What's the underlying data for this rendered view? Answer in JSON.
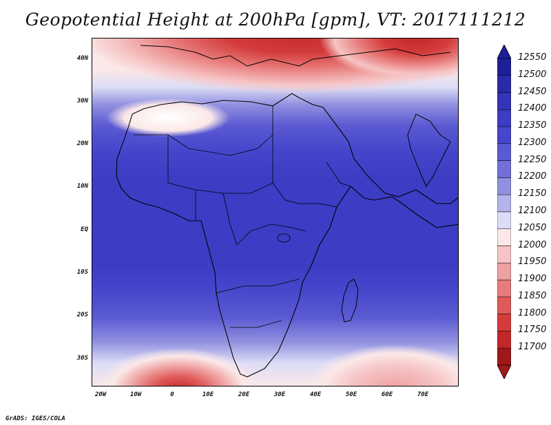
{
  "title": "Geopotential Height at 200hPa [gpm], VT: 2017111212",
  "credit": "GrADS: IGES/COLA",
  "latitude_labels": [
    "40N",
    "30N",
    "20N",
    "10N",
    "EQ",
    "10S",
    "20S",
    "30S"
  ],
  "longitude_labels": [
    "20W",
    "10W",
    "0",
    "10E",
    "20E",
    "30E",
    "40E",
    "50E",
    "60E",
    "70E"
  ],
  "colorbar": {
    "levels": [
      "12550",
      "12500",
      "12450",
      "12400",
      "12350",
      "12300",
      "12250",
      "12200",
      "12150",
      "12100",
      "12050",
      "12000",
      "11950",
      "11900",
      "11850",
      "11800",
      "11750",
      "11700"
    ],
    "colors": [
      "#1e1e96",
      "#2a2aa8",
      "#3434b8",
      "#3c3cc4",
      "#4646cc",
      "#5a5ad2",
      "#7070d8",
      "#9090e0",
      "#b4b4ec",
      "#dcdcf6",
      "#fbe8e8",
      "#f6c4c4",
      "#efa0a0",
      "#e87c7c",
      "#e05a5a",
      "#d43c3c",
      "#c02828",
      "#a01818"
    ]
  },
  "chart_data": {
    "type": "heatmap",
    "variable": "Geopotential Height",
    "level": "200hPa",
    "units": "gpm",
    "valid_time": "2017111212",
    "lon_range": [
      "20W",
      "80E"
    ],
    "lat_range": [
      "37S",
      "45N"
    ],
    "value_range": [
      11700,
      12550
    ],
    "contour_interval": 50,
    "features": [
      {
        "region": "Mediterranean / Middle East",
        "level": "low",
        "approx_value": 11850
      },
      {
        "region": "Tropics (equatorial band)",
        "level": "high",
        "approx_value": 12450
      },
      {
        "region": "South Atlantic, off SW Africa",
        "level": "low",
        "approx_value": 11800
      },
      {
        "region": "South Indian Ocean",
        "level": "low",
        "approx_value": 12050
      }
    ]
  }
}
